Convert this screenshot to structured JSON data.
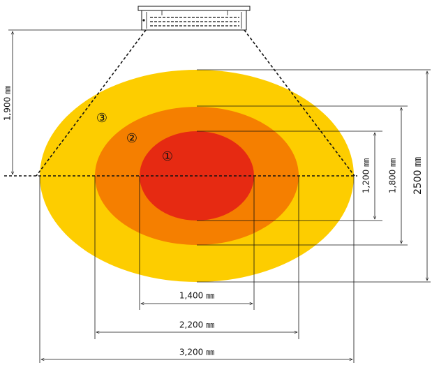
{
  "colors": {
    "zone1": "#e62a12",
    "zone2": "#f57f00",
    "zone3": "#fdcd00",
    "line": "#111111",
    "background": "#ffffff"
  },
  "zones": [
    {
      "id": "zone-1",
      "label": "①"
    },
    {
      "id": "zone-2",
      "label": "②"
    },
    {
      "id": "zone-3",
      "label": "③"
    }
  ],
  "dimensions": {
    "height": "1,900 ㎜",
    "width_zone1": "1,400 ㎜",
    "width_zone2": "2,200 ㎜",
    "width_zone3": "3,200 ㎜",
    "depth_zone1": "1,200 ㎜",
    "depth_zone2": "1,800 ㎜",
    "depth_zone3": "2500 ㎜"
  },
  "icons": {
    "heater": "ceiling-heater-icon"
  }
}
